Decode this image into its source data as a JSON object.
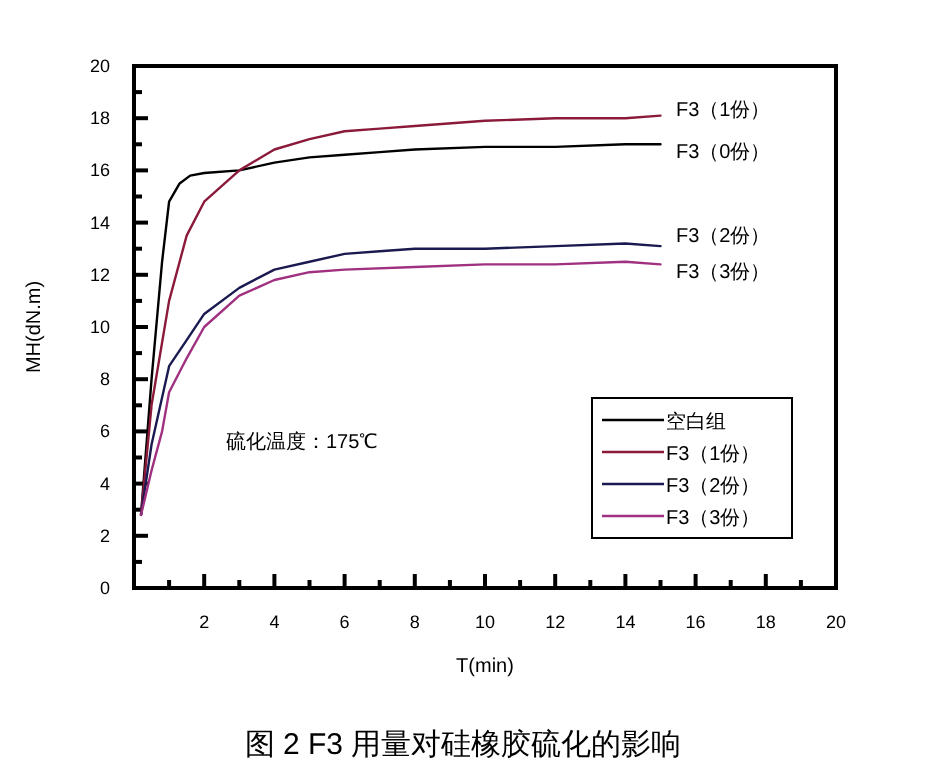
{
  "chart_data": {
    "type": "line",
    "title": "图 2 F3 用量对硅橡胶硫化的影响",
    "xlabel": "T(min)",
    "ylabel": "MH(dN.m)",
    "xlim": [
      0,
      20
    ],
    "ylim": [
      0,
      20
    ],
    "xticks": [
      {
        "value": 1,
        "label": null
      },
      2,
      {
        "value": 3,
        "label": null
      },
      4,
      {
        "value": 5,
        "label": null
      },
      6,
      {
        "value": 7,
        "label": null
      },
      8,
      {
        "value": 9,
        "label": null
      },
      10,
      {
        "value": 11,
        "label": null
      },
      12,
      {
        "value": 13,
        "label": null
      },
      14,
      {
        "value": 15,
        "label": null
      },
      16,
      {
        "value": 17,
        "label": null
      },
      18,
      {
        "value": 19,
        "label": null
      },
      20
    ],
    "yticks": [
      0,
      {
        "value": 1,
        "label": null
      },
      2,
      {
        "value": 3,
        "label": null
      },
      4,
      {
        "value": 5,
        "label": null
      },
      6,
      {
        "value": 7,
        "label": null
      },
      8,
      {
        "value": 9,
        "label": null
      },
      10,
      {
        "value": 11,
        "label": null
      },
      12,
      {
        "value": 13,
        "label": null
      },
      14,
      {
        "value": 15,
        "label": null
      },
      16,
      {
        "value": 17,
        "label": null
      },
      18,
      {
        "value": 19,
        "label": null
      },
      20
    ],
    "grid": false,
    "legend": "bottom right",
    "marker": "none",
    "line_style": "solid",
    "annotations": [
      "硫化温度：175℃",
      "F3（1份）",
      "F3（0份）",
      "F3（2份）",
      "F3（3份）"
    ],
    "series": [
      {
        "name": "空白组",
        "color": "#000000",
        "x": [
          0.2,
          0.5,
          0.8,
          1,
          1.3,
          1.6,
          2,
          3,
          4,
          5,
          6,
          7,
          8,
          10,
          12,
          14,
          15
        ],
        "values": [
          2.8,
          8,
          12.5,
          14.8,
          15.5,
          15.8,
          15.9,
          16.0,
          16.3,
          16.5,
          16.6,
          16.7,
          16.8,
          16.9,
          16.9,
          17.0,
          17.0
        ]
      },
      {
        "name": "F3（1份）",
        "color": "#8b1a3a",
        "x": [
          0.2,
          0.5,
          1,
          1.5,
          2,
          3,
          4,
          5,
          6,
          7,
          8,
          10,
          12,
          14,
          15
        ],
        "values": [
          2.8,
          7,
          11,
          13.5,
          14.8,
          16.0,
          16.8,
          17.2,
          17.5,
          17.6,
          17.7,
          17.9,
          18.0,
          18.0,
          18.1
        ]
      },
      {
        "name": "F3（2份）",
        "color": "#1a1a50",
        "x": [
          0.2,
          0.5,
          1,
          1.5,
          2,
          3,
          4,
          5,
          6,
          7,
          8,
          10,
          12,
          14,
          15
        ],
        "values": [
          2.8,
          5.5,
          8.5,
          9.5,
          10.5,
          11.5,
          12.2,
          12.5,
          12.8,
          12.9,
          13.0,
          13.0,
          13.1,
          13.2,
          13.1
        ]
      },
      {
        "name": "F3（3份）",
        "color": "#a03080",
        "x": [
          0.2,
          0.5,
          0.8,
          1,
          1.5,
          2,
          3,
          4,
          5,
          6,
          8,
          10,
          12,
          14,
          15
        ],
        "values": [
          2.8,
          4.5,
          6,
          7.5,
          8.8,
          10,
          11.2,
          11.8,
          12.1,
          12.2,
          12.3,
          12.4,
          12.4,
          12.5,
          12.4
        ]
      }
    ]
  }
}
